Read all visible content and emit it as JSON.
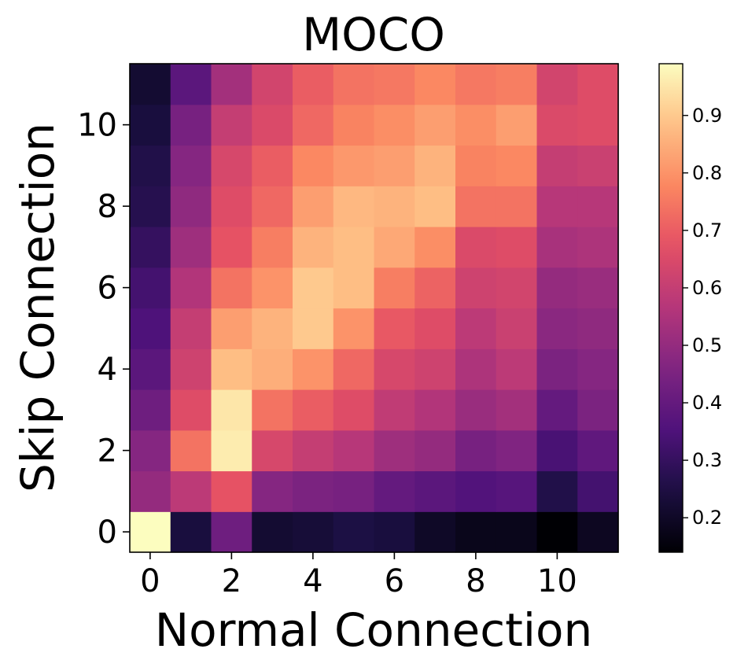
{
  "chart_data": {
    "type": "heatmap",
    "title": "MOCO",
    "xlabel": "Normal Connection",
    "ylabel": "Skip Connection",
    "x": [
      0,
      1,
      2,
      3,
      4,
      5,
      6,
      7,
      8,
      9,
      10,
      11
    ],
    "y": [
      0,
      1,
      2,
      3,
      4,
      5,
      6,
      7,
      8,
      9,
      10,
      11
    ],
    "xticks": [
      "0",
      "2",
      "4",
      "6",
      "8",
      "10"
    ],
    "yticks": [
      "0",
      "2",
      "4",
      "6",
      "8",
      "10"
    ],
    "colormap": "magma",
    "vmin": 0.14,
    "vmax": 0.99,
    "colorbar_ticks": [
      "0.2",
      "0.3",
      "0.4",
      "0.5",
      "0.6",
      "0.7",
      "0.8",
      "0.9"
    ],
    "values": [
      [
        0.99,
        0.24,
        0.42,
        0.22,
        0.23,
        0.25,
        0.24,
        0.2,
        0.18,
        0.18,
        0.14,
        0.19
      ],
      [
        0.5,
        0.58,
        0.68,
        0.47,
        0.45,
        0.44,
        0.4,
        0.38,
        0.36,
        0.37,
        0.26,
        0.33
      ],
      [
        0.47,
        0.74,
        0.96,
        0.64,
        0.6,
        0.57,
        0.52,
        0.5,
        0.44,
        0.46,
        0.34,
        0.39
      ],
      [
        0.42,
        0.66,
        0.95,
        0.74,
        0.7,
        0.66,
        0.59,
        0.56,
        0.51,
        0.53,
        0.4,
        0.45
      ],
      [
        0.38,
        0.62,
        0.88,
        0.85,
        0.8,
        0.72,
        0.64,
        0.62,
        0.55,
        0.58,
        0.45,
        0.47
      ],
      [
        0.35,
        0.6,
        0.82,
        0.86,
        0.9,
        0.8,
        0.69,
        0.66,
        0.58,
        0.61,
        0.48,
        0.49
      ],
      [
        0.33,
        0.56,
        0.74,
        0.8,
        0.9,
        0.88,
        0.76,
        0.71,
        0.62,
        0.63,
        0.5,
        0.51
      ],
      [
        0.3,
        0.52,
        0.68,
        0.76,
        0.86,
        0.88,
        0.84,
        0.79,
        0.65,
        0.66,
        0.54,
        0.55
      ],
      [
        0.27,
        0.49,
        0.66,
        0.72,
        0.82,
        0.87,
        0.86,
        0.88,
        0.74,
        0.74,
        0.57,
        0.57
      ],
      [
        0.26,
        0.47,
        0.64,
        0.7,
        0.78,
        0.81,
        0.82,
        0.86,
        0.77,
        0.78,
        0.6,
        0.61
      ],
      [
        0.24,
        0.44,
        0.6,
        0.65,
        0.72,
        0.77,
        0.79,
        0.82,
        0.79,
        0.82,
        0.65,
        0.66
      ],
      [
        0.22,
        0.38,
        0.53,
        0.63,
        0.7,
        0.74,
        0.75,
        0.78,
        0.75,
        0.76,
        0.63,
        0.66
      ]
    ]
  }
}
